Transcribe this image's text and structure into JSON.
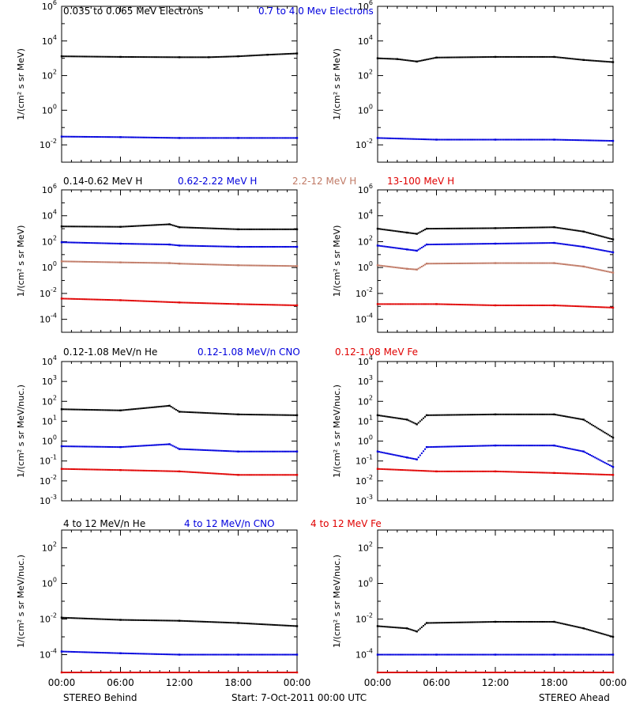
{
  "colors": {
    "black": "#000000",
    "blue": "#0000dd",
    "tan": "#c07a66",
    "red": "#e00000"
  },
  "rows": [
    {
      "key": "electrons",
      "legend": [
        {
          "text": "0.035 to 0.065 MeV Electrons",
          "color": "black"
        },
        {
          "text": "0.7 to 4.0 Mev Electrons",
          "color": "blue"
        }
      ],
      "ylabel": "1/(cm² s sr MeV)",
      "ticks": [
        {
          "v": -2,
          "base": "10",
          "exp": "-2"
        },
        {
          "v": 0,
          "base": "10",
          "exp": "0"
        },
        {
          "v": 2,
          "base": "10",
          "exp": "2"
        },
        {
          "v": 4,
          "base": "10",
          "exp": "4"
        },
        {
          "v": 6,
          "base": "10",
          "exp": "6"
        }
      ]
    },
    {
      "key": "protons",
      "legend": [
        {
          "text": "0.14-0.62 MeV H",
          "color": "black"
        },
        {
          "text": "0.62-2.22 MeV H",
          "color": "blue"
        },
        {
          "text": "2.2-12 MeV H",
          "color": "tan"
        },
        {
          "text": "13-100 MeV H",
          "color": "red"
        }
      ],
      "ylabel": "1/(cm² s sr MeV)",
      "ticks": [
        {
          "v": -4,
          "base": "10",
          "exp": "-4"
        },
        {
          "v": -2,
          "base": "10",
          "exp": "-2"
        },
        {
          "v": 0,
          "base": "10",
          "exp": "0"
        },
        {
          "v": 2,
          "base": "10",
          "exp": "2"
        },
        {
          "v": 4,
          "base": "10",
          "exp": "4"
        },
        {
          "v": 6,
          "base": "10",
          "exp": "6"
        }
      ]
    },
    {
      "key": "heavy_low",
      "legend": [
        {
          "text": "0.12-1.08 MeV/n He",
          "color": "black"
        },
        {
          "text": "0.12-1.08 MeV/n CNO",
          "color": "blue"
        },
        {
          "text": "0.12-1.08 MeV Fe",
          "color": "red"
        }
      ],
      "ylabel": "1/(cm² s sr MeV/nuc.)",
      "ticks": [
        {
          "v": -3,
          "base": "10",
          "exp": "-3"
        },
        {
          "v": -2,
          "base": "10",
          "exp": "-2"
        },
        {
          "v": -1,
          "base": "10",
          "exp": "-1"
        },
        {
          "v": 0,
          "base": "10",
          "exp": "0"
        },
        {
          "v": 1,
          "base": "10",
          "exp": "1"
        },
        {
          "v": 2,
          "base": "10",
          "exp": "2"
        },
        {
          "v": 3,
          "base": "10",
          "exp": "3"
        },
        {
          "v": 4,
          "base": "10",
          "exp": "4"
        }
      ]
    },
    {
      "key": "heavy_high",
      "legend": [
        {
          "text": "4 to 12 MeV/n He",
          "color": "black"
        },
        {
          "text": "4 to 12 MeV/n CNO",
          "color": "blue"
        },
        {
          "text": "4 to 12 MeV Fe",
          "color": "red"
        }
      ],
      "ylabel": "1/(cm² s sr MeV/nuc.)",
      "ticks": [
        {
          "v": -4,
          "base": "10",
          "exp": "-4"
        },
        {
          "v": -2,
          "base": "10",
          "exp": "-2"
        },
        {
          "v": 0,
          "base": "10",
          "exp": "0"
        },
        {
          "v": 2,
          "base": "10",
          "exp": "2"
        }
      ]
    }
  ],
  "xticks": [
    "00:00",
    "06:00",
    "12:00",
    "18:00",
    "00:00"
  ],
  "footer": {
    "left": "STEREO Behind",
    "center": "Start:  7-Oct-2011 00:00 UTC",
    "right": "STEREO Ahead"
  },
  "chart_data": [
    {
      "type": "scatter",
      "panel": "electrons / STEREO Behind",
      "x_range": [
        "00:00",
        "24:00"
      ],
      "y_scale": "log",
      "ylim": [
        0.001,
        1000000
      ],
      "series": [
        {
          "name": "0.035 to 0.065 MeV Electrons",
          "x": [
            0,
            6,
            12,
            15,
            18,
            21,
            24
          ],
          "y": [
            1300,
            1200,
            1150,
            1150,
            1300,
            1600,
            1900
          ]
        },
        {
          "name": "0.7 to 4.0 Mev Electrons",
          "x": [
            0,
            6,
            12,
            18,
            24
          ],
          "y": [
            0.03,
            0.028,
            0.025,
            0.025,
            0.025
          ]
        }
      ]
    },
    {
      "type": "scatter",
      "panel": "electrons / STEREO Ahead",
      "x_range": [
        "00:00",
        "24:00"
      ],
      "y_scale": "log",
      "ylim": [
        0.001,
        1000000
      ],
      "series": [
        {
          "name": "0.035 to 0.065 MeV Electrons",
          "x": [
            0,
            2,
            4,
            6,
            12,
            18,
            21,
            24
          ],
          "y": [
            1000,
            900,
            650,
            1100,
            1200,
            1200,
            800,
            600
          ]
        },
        {
          "name": "0.7 to 4.0 Mev Electrons",
          "x": [
            0,
            6,
            12,
            18,
            24
          ],
          "y": [
            0.025,
            0.02,
            0.02,
            0.02,
            0.017
          ]
        }
      ]
    },
    {
      "type": "scatter",
      "panel": "protons / STEREO Behind",
      "x_range": [
        "00:00",
        "24:00"
      ],
      "y_scale": "log",
      "ylim": [
        1e-05,
        1000000
      ],
      "series": [
        {
          "name": "0.14-0.62 MeV H",
          "x": [
            0,
            6,
            11,
            12,
            18,
            24
          ],
          "y": [
            1500,
            1400,
            2200,
            1300,
            900,
            900
          ]
        },
        {
          "name": "0.62-2.22 MeV H",
          "x": [
            0,
            6,
            11,
            12,
            18,
            24
          ],
          "y": [
            90,
            70,
            60,
            50,
            40,
            40
          ]
        },
        {
          "name": "2.2-12 MeV H",
          "x": [
            0,
            6,
            11,
            12,
            18,
            24
          ],
          "y": [
            3,
            2.5,
            2.2,
            2,
            1.5,
            1.3
          ]
        },
        {
          "name": "13-100 MeV H",
          "x": [
            0,
            6,
            12,
            18,
            24
          ],
          "y": [
            0.004,
            0.003,
            0.002,
            0.0015,
            0.0012
          ]
        }
      ]
    },
    {
      "type": "scatter",
      "panel": "protons / STEREO Ahead",
      "x_range": [
        "00:00",
        "24:00"
      ],
      "y_scale": "log",
      "ylim": [
        1e-05,
        1000000
      ],
      "series": [
        {
          "name": "0.14-0.62 MeV H",
          "x": [
            0,
            3,
            4,
            5,
            12,
            18,
            21,
            24
          ],
          "y": [
            1000,
            500,
            400,
            1000,
            1100,
            1300,
            600,
            150
          ]
        },
        {
          "name": "0.62-2.22 MeV H",
          "x": [
            0,
            3,
            4,
            5,
            12,
            18,
            21,
            24
          ],
          "y": [
            50,
            25,
            20,
            60,
            70,
            80,
            40,
            15
          ]
        },
        {
          "name": "2.2-12 MeV H",
          "x": [
            0,
            3,
            4,
            5,
            12,
            18,
            21,
            24
          ],
          "y": [
            1.5,
            0.8,
            0.7,
            2,
            2.2,
            2.2,
            1.2,
            0.4
          ]
        },
        {
          "name": "13-100 MeV H",
          "x": [
            0,
            6,
            12,
            18,
            24
          ],
          "y": [
            0.0015,
            0.0015,
            0.0012,
            0.0012,
            0.0008
          ]
        }
      ]
    },
    {
      "type": "scatter",
      "panel": "0.12-1.08 MeV / STEREO Behind",
      "x_range": [
        "00:00",
        "24:00"
      ],
      "y_scale": "log",
      "ylim": [
        0.001,
        10000
      ],
      "series": [
        {
          "name": "0.12-1.08 MeV/n He",
          "x": [
            0,
            6,
            11,
            12,
            18,
            24
          ],
          "y": [
            40,
            35,
            60,
            30,
            22,
            20
          ]
        },
        {
          "name": "0.12-1.08 MeV/n CNO",
          "x": [
            0,
            6,
            11,
            12,
            18,
            24
          ],
          "y": [
            0.55,
            0.5,
            0.7,
            0.4,
            0.3,
            0.3
          ]
        },
        {
          "name": "0.12-1.08 MeV Fe",
          "x": [
            0,
            6,
            12,
            18,
            24
          ],
          "y": [
            0.04,
            0.035,
            0.03,
            0.02,
            0.02
          ]
        }
      ]
    },
    {
      "type": "scatter",
      "panel": "0.12-1.08 MeV / STEREO Ahead",
      "x_range": [
        "00:00",
        "24:00"
      ],
      "y_scale": "log",
      "ylim": [
        0.001,
        10000
      ],
      "series": [
        {
          "name": "0.12-1.08 MeV/n He",
          "x": [
            0,
            3,
            4,
            5,
            12,
            18,
            21,
            24
          ],
          "y": [
            20,
            12,
            7,
            20,
            22,
            22,
            12,
            1.5
          ]
        },
        {
          "name": "0.12-1.08 MeV/n CNO",
          "x": [
            0,
            3,
            4,
            5,
            12,
            18,
            21,
            24
          ],
          "y": [
            0.3,
            0.15,
            0.12,
            0.5,
            0.6,
            0.6,
            0.3,
            0.05
          ]
        },
        {
          "name": "0.12-1.08 MeV Fe",
          "x": [
            0,
            6,
            12,
            18,
            24
          ],
          "y": [
            0.04,
            0.03,
            0.03,
            0.025,
            0.02
          ]
        }
      ]
    },
    {
      "type": "scatter",
      "panel": "4 to 12 MeV / STEREO Behind",
      "x_range": [
        "00:00",
        "24:00"
      ],
      "y_scale": "log",
      "ylim": [
        1e-05,
        1000
      ],
      "series": [
        {
          "name": "4 to 12 MeV/n He",
          "x": [
            0,
            6,
            12,
            18,
            24
          ],
          "y": [
            0.012,
            0.009,
            0.008,
            0.006,
            0.004
          ]
        },
        {
          "name": "4 to 12 MeV/n CNO",
          "x": [
            0,
            6,
            12,
            18,
            24
          ],
          "y": [
            0.00015,
            0.00012,
            0.0001,
            0.0001,
            0.0001
          ]
        },
        {
          "name": "4 to 12 MeV Fe",
          "x": [
            0,
            24
          ],
          "y": [
            1e-05,
            1e-05
          ]
        }
      ]
    },
    {
      "type": "scatter",
      "panel": "4 to 12 MeV / STEREO Ahead",
      "x_range": [
        "00:00",
        "24:00"
      ],
      "y_scale": "log",
      "ylim": [
        1e-05,
        1000
      ],
      "series": [
        {
          "name": "4 to 12 MeV/n He",
          "x": [
            0,
            3,
            4,
            5,
            12,
            18,
            21,
            24
          ],
          "y": [
            0.004,
            0.003,
            0.002,
            0.006,
            0.007,
            0.007,
            0.003,
            0.001
          ]
        },
        {
          "name": "4 to 12 MeV/n CNO",
          "x": [
            0,
            6,
            12,
            18,
            24
          ],
          "y": [
            0.0001,
            0.0001,
            0.0001,
            0.0001,
            0.0001
          ]
        },
        {
          "name": "4 to 12 MeV Fe",
          "x": [
            0,
            24
          ],
          "y": [
            1e-05,
            1e-05
          ]
        }
      ]
    }
  ]
}
